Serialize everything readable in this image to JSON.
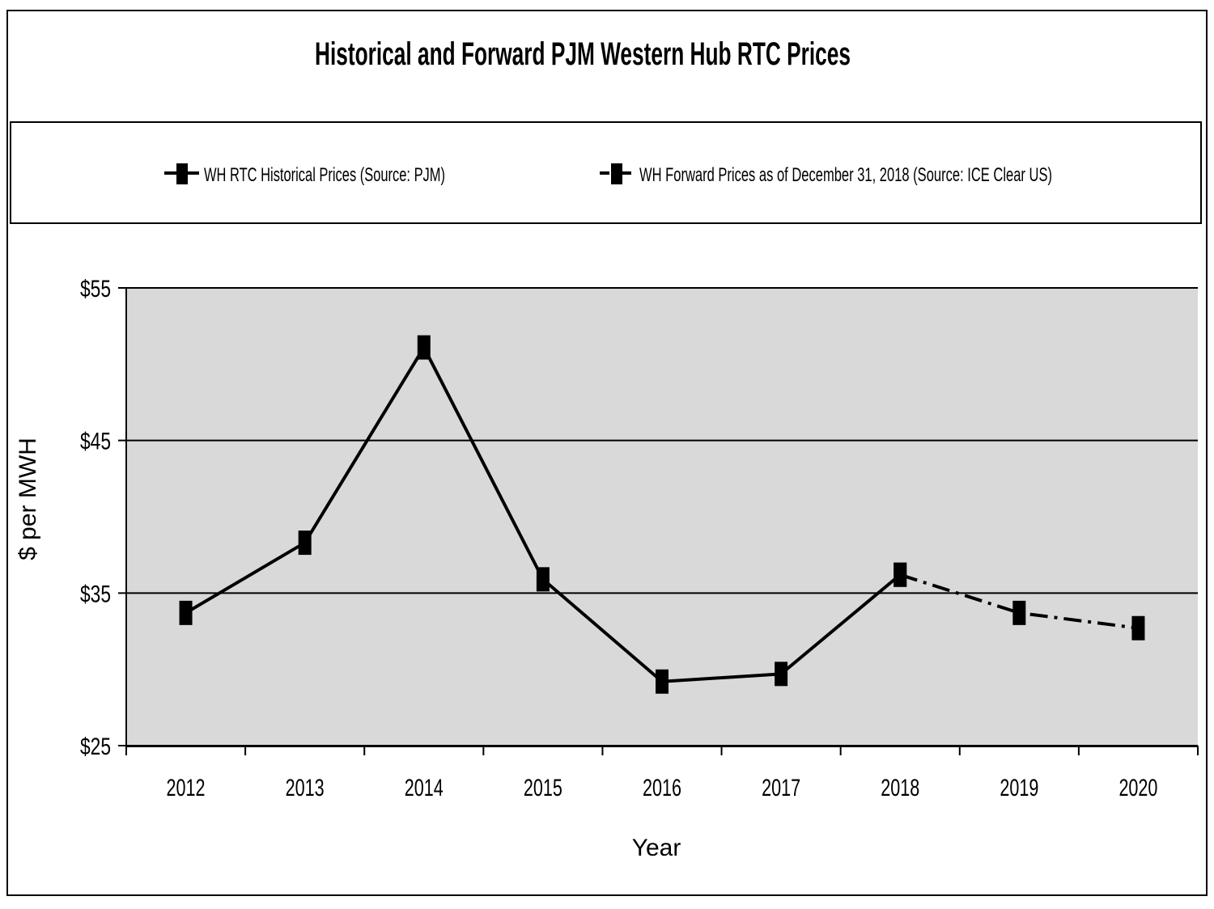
{
  "chart_data": {
    "type": "line",
    "title": "Historical and Forward PJM Western Hub RTC Prices",
    "xlabel": "Year",
    "ylabel": "$ per MWH",
    "ylim": [
      25,
      55
    ],
    "y_ticks": [
      {
        "value": 55,
        "label": "$55"
      },
      {
        "value": 45,
        "label": "$45"
      },
      {
        "value": 35,
        "label": "$35"
      },
      {
        "value": 25,
        "label": "$25"
      }
    ],
    "categories": [
      "2012",
      "2013",
      "2014",
      "2015",
      "2016",
      "2017",
      "2018",
      "2019",
      "2020"
    ],
    "grid": true,
    "legend_position": "top",
    "series": [
      {
        "name": "WH RTC Historical Prices (Source: PJM)",
        "style": "solid",
        "x": [
          "2012",
          "2013",
          "2014",
          "2015",
          "2016",
          "2017",
          "2018"
        ],
        "values": [
          33.7,
          38.3,
          51.1,
          35.9,
          29.2,
          29.7,
          36.2
        ]
      },
      {
        "name": "WH Forward Prices as of December 31, 2018 (Source: ICE Clear US)",
        "style": "dashdot",
        "x": [
          "2018",
          "2019",
          "2020"
        ],
        "values": [
          36.2,
          33.7,
          32.7
        ]
      }
    ],
    "colors": {
      "line": "#000000",
      "plot_background": "#d9d9d9",
      "gridline": "#000000"
    }
  }
}
